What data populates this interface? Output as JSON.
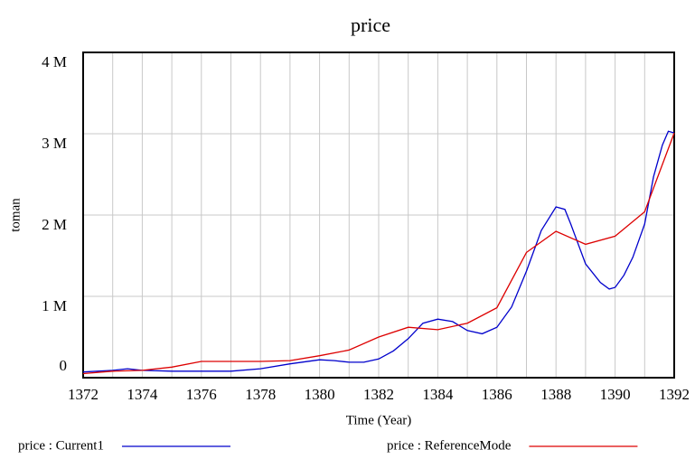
{
  "chart_data": {
    "type": "line",
    "title": "price",
    "ylabel": "toman",
    "xlabel": "Time (Year)",
    "xlim": [
      1372,
      1392
    ],
    "xticks": [
      1372,
      1374,
      1376,
      1378,
      1380,
      1382,
      1384,
      1386,
      1388,
      1390,
      1392
    ],
    "ylim": [
      0,
      4000000
    ],
    "yticks": [
      0,
      {
        "value": 1000000,
        "label": "1 M"
      },
      {
        "value": 2000000,
        "label": "2 M"
      },
      {
        "value": 3000000,
        "label": "3 M"
      },
      {
        "value": 4000000,
        "label": "4 M"
      }
    ],
    "grid": true,
    "series": [
      {
        "name": "price : Current1",
        "color": "#0000cc",
        "x": [
          1372,
          1373,
          1373.5,
          1374,
          1375,
          1376,
          1377,
          1378,
          1379,
          1380,
          1380.5,
          1381,
          1381.5,
          1382,
          1382.5,
          1383,
          1383.5,
          1384,
          1384.5,
          1385,
          1385.5,
          1386,
          1386.5,
          1387,
          1387.5,
          1388,
          1388.3,
          1388.5,
          1389,
          1389.5,
          1389.8,
          1390,
          1390.3,
          1390.6,
          1391,
          1391.3,
          1391.6,
          1391.8,
          1392
        ],
        "values": [
          70000,
          90000,
          110000,
          90000,
          80000,
          80000,
          80000,
          110000,
          170000,
          220000,
          210000,
          190000,
          190000,
          230000,
          330000,
          480000,
          670000,
          720000,
          690000,
          580000,
          540000,
          620000,
          870000,
          1310000,
          1810000,
          2100000,
          2070000,
          1890000,
          1400000,
          1170000,
          1090000,
          1110000,
          1260000,
          1480000,
          1890000,
          2470000,
          2860000,
          3030000,
          3010000
        ]
      },
      {
        "name": "price : ReferenceMode",
        "color": "#dd0000",
        "x": [
          1372,
          1373,
          1374,
          1375,
          1376,
          1377,
          1378,
          1379,
          1380,
          1381,
          1382,
          1383,
          1384,
          1385,
          1386,
          1387,
          1388,
          1389,
          1390,
          1391,
          1392
        ],
        "values": [
          50000,
          80000,
          90000,
          130000,
          200000,
          200000,
          200000,
          210000,
          270000,
          340000,
          500000,
          620000,
          590000,
          670000,
          860000,
          1540000,
          1800000,
          1640000,
          1740000,
          2040000,
          3010000
        ]
      }
    ]
  }
}
